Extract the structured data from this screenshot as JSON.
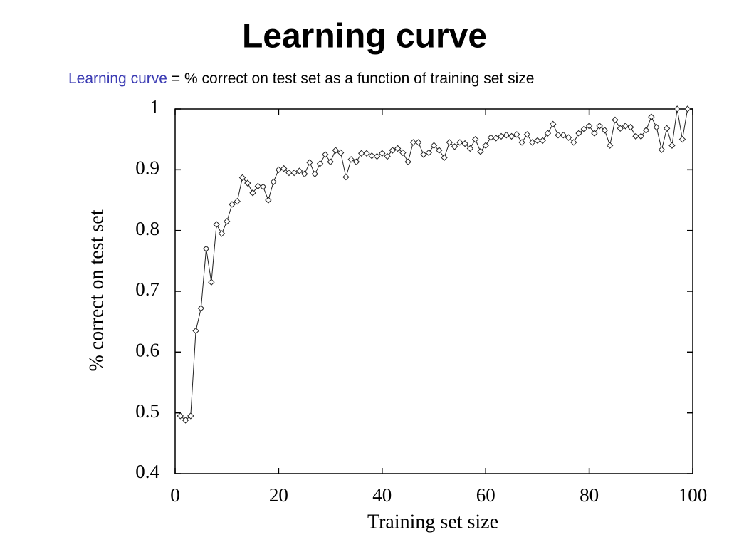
{
  "chart_data": {
    "type": "line",
    "title": "Learning curve",
    "subtitle": {
      "term": "Learning curve",
      "definition": "= % correct on test set as a function of training set size"
    },
    "x_label": "Training set size",
    "y_label": "% correct on test set",
    "color": "#222222",
    "marker": "diamond",
    "x": [
      1,
      2,
      3,
      4,
      5,
      6,
      7,
      8,
      9,
      10,
      11,
      12,
      13,
      14,
      15,
      16,
      17,
      18,
      19,
      20,
      21,
      22,
      23,
      24,
      25,
      26,
      27,
      28,
      29,
      30,
      31,
      32,
      33,
      34,
      35,
      36,
      37,
      38,
      39,
      40,
      41,
      42,
      43,
      44,
      45,
      46,
      47,
      48,
      49,
      50,
      51,
      52,
      53,
      54,
      55,
      56,
      57,
      58,
      59,
      60,
      61,
      62,
      63,
      64,
      65,
      66,
      67,
      68,
      69,
      70,
      71,
      72,
      73,
      74,
      75,
      76,
      77,
      78,
      79,
      80,
      81,
      82,
      83,
      84,
      85,
      86,
      87,
      88,
      89,
      90,
      91,
      92,
      93,
      94,
      95,
      96,
      97,
      98,
      99
    ],
    "values": [
      0.495,
      0.488,
      0.495,
      0.635,
      0.672,
      0.77,
      0.715,
      0.81,
      0.795,
      0.815,
      0.843,
      0.848,
      0.887,
      0.878,
      0.862,
      0.873,
      0.872,
      0.85,
      0.88,
      0.9,
      0.902,
      0.895,
      0.895,
      0.898,
      0.893,
      0.912,
      0.893,
      0.91,
      0.925,
      0.913,
      0.932,
      0.928,
      0.888,
      0.917,
      0.913,
      0.927,
      0.927,
      0.923,
      0.922,
      0.927,
      0.922,
      0.932,
      0.935,
      0.928,
      0.913,
      0.945,
      0.945,
      0.925,
      0.928,
      0.94,
      0.932,
      0.92,
      0.945,
      0.938,
      0.945,
      0.943,
      0.935,
      0.95,
      0.93,
      0.94,
      0.953,
      0.952,
      0.955,
      0.957,
      0.955,
      0.958,
      0.945,
      0.958,
      0.945,
      0.948,
      0.948,
      0.96,
      0.975,
      0.957,
      0.957,
      0.953,
      0.945,
      0.96,
      0.967,
      0.972,
      0.96,
      0.972,
      0.965,
      0.94,
      0.982,
      0.968,
      0.972,
      0.97,
      0.955,
      0.955,
      0.965,
      0.987,
      0.97,
      0.933,
      0.968,
      0.94,
      1.0,
      0.95,
      1.0
    ],
    "xlim": [
      0,
      100
    ],
    "xticks": [
      0,
      20,
      40,
      60,
      80,
      100
    ],
    "ylim": [
      0.4,
      1
    ],
    "yticks": [
      0.4,
      0.5,
      0.6,
      0.7,
      0.8,
      0.9,
      1
    ]
  }
}
